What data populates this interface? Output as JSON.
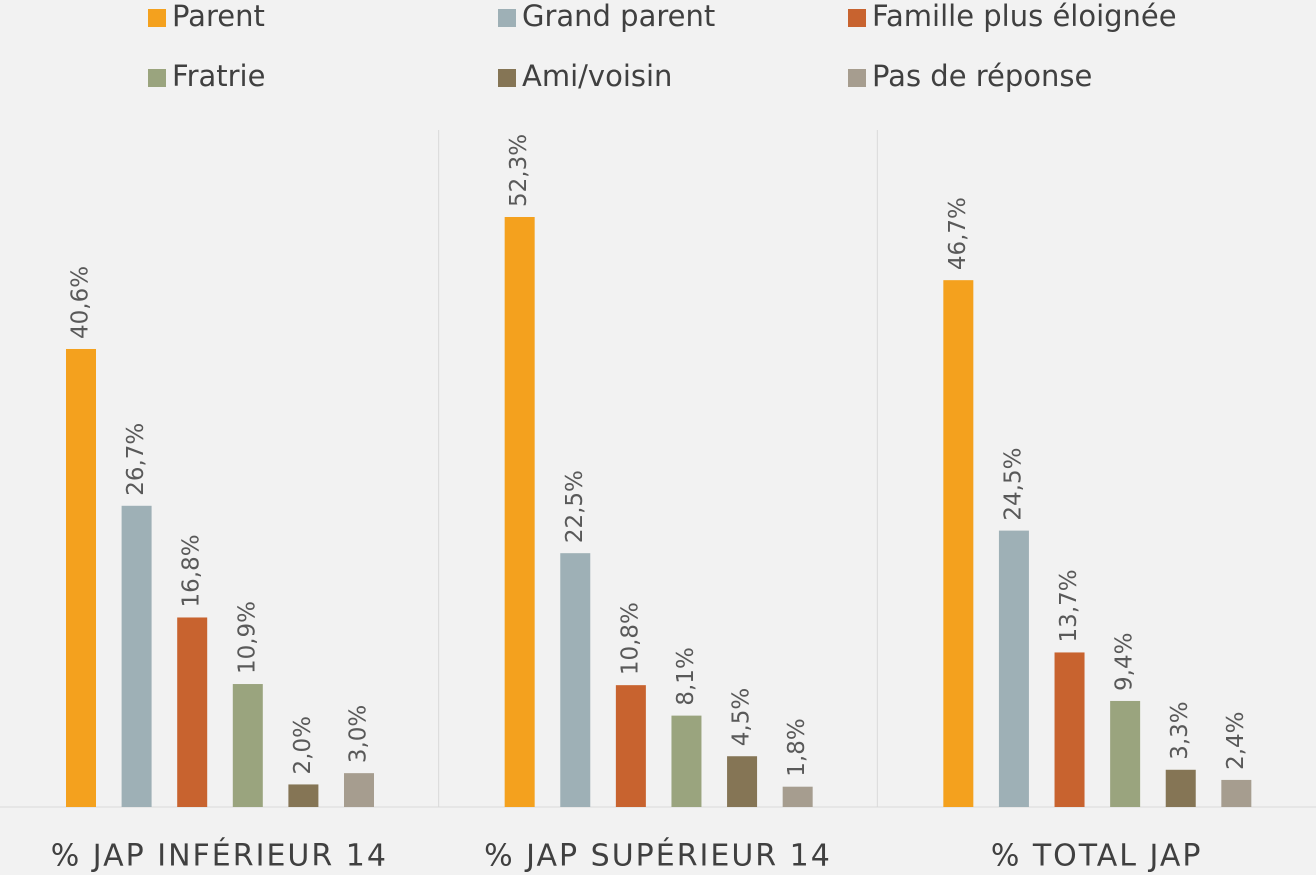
{
  "chart_data": {
    "type": "bar",
    "categories": [
      "% JAP INFÉRIEUR 14",
      "% JAP SUPÉRIEUR 14",
      "% TOTAL JAP"
    ],
    "series": [
      {
        "name": "Parent",
        "color": "#f4a11e",
        "values": [
          40.6,
          52.3,
          46.7
        ],
        "value_labels": [
          "40,6%",
          "52,3%",
          "46,7%"
        ]
      },
      {
        "name": "Grand parent",
        "color": "#9eb0b6",
        "values": [
          26.7,
          22.5,
          24.5
        ],
        "value_labels": [
          "26,7%",
          "22,5%",
          "24,5%"
        ]
      },
      {
        "name": "Famille plus éloignée",
        "color": "#c8632f",
        "values": [
          16.8,
          10.8,
          13.7
        ],
        "value_labels": [
          "16,8%",
          "10,8%",
          "13,7%"
        ]
      },
      {
        "name": "Fratrie",
        "color": "#9aa47e",
        "values": [
          10.9,
          8.1,
          9.4
        ],
        "value_labels": [
          "10,9%",
          "8,1%",
          "9,4%"
        ]
      },
      {
        "name": "Ami/voisin",
        "color": "#857555",
        "values": [
          2.0,
          4.5,
          3.3
        ],
        "value_labels": [
          "2,0%",
          "4,5%",
          "3,3%"
        ]
      },
      {
        "name": "Pas de réponse",
        "color": "#a69d8f",
        "values": [
          3.0,
          1.8,
          2.4
        ],
        "value_labels": [
          "3,0%",
          "1,8%",
          "2,4%"
        ]
      }
    ],
    "legend": "top"
  }
}
